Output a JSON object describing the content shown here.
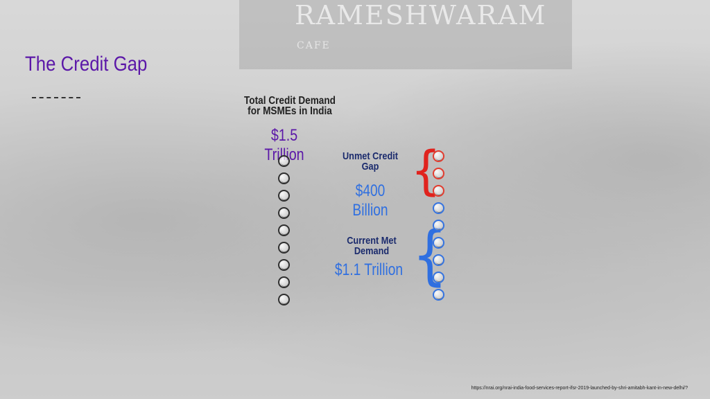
{
  "title": "The Credit Gap",
  "total": {
    "heading": "Total Credit Demand for MSMEs in India",
    "value": "$1.5 Trillion",
    "circle_count": 9
  },
  "unmet": {
    "label": "Unmet Credit Gap",
    "value": "$400 Billion",
    "circle_count": 3
  },
  "met": {
    "label": "Current Met Demand",
    "value": "$1.1 Trillion",
    "circle_count": 6
  },
  "background_sign": {
    "name": "RAMESHWARAM",
    "sub": "CAFE"
  },
  "colors": {
    "title": "#5b17a8",
    "unmet_brace": "#e0231e",
    "met_brace": "#2f6fe0",
    "values": "#2f6fe0"
  },
  "source": "https://nrai.org/nrai-india-food-services-report-ifsr-2019-launched-by-shri-amitabh-kant-in-new-delhi/?"
}
